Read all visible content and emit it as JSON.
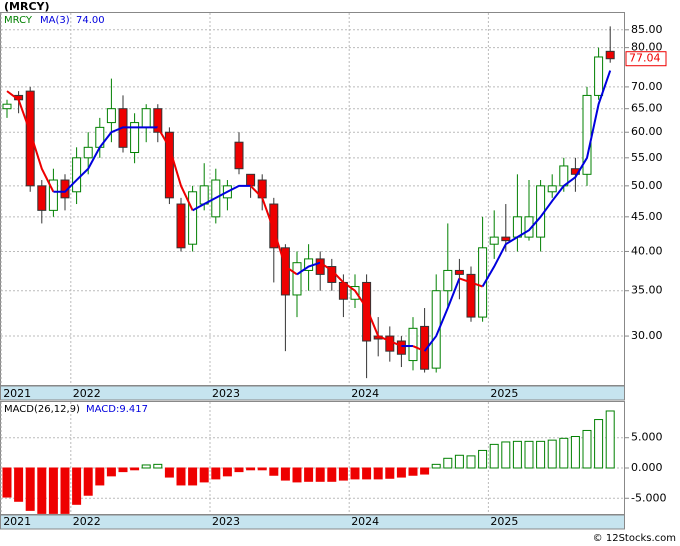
{
  "title": "(MRCY)",
  "footer": "© 12Stocks.com",
  "chart_data": [
    {
      "type": "candlestick",
      "symbol": "MRCY",
      "log_scale": true,
      "grid": true,
      "up_color": "#008000",
      "down_color": "#ee0000",
      "categories": [
        "2021",
        null,
        null,
        null,
        null,
        null,
        "2022",
        null,
        null,
        null,
        null,
        null,
        null,
        null,
        null,
        null,
        null,
        null,
        "2023",
        null,
        null,
        null,
        null,
        null,
        null,
        null,
        null,
        null,
        null,
        null,
        "2024",
        null,
        null,
        null,
        null,
        null,
        null,
        null,
        null,
        null,
        null,
        null,
        "2025",
        null,
        null,
        null,
        null,
        null,
        null,
        null,
        null,
        null,
        null
      ],
      "open": [
        65,
        68,
        69,
        50,
        46,
        51,
        49,
        55,
        57,
        62,
        65,
        56,
        61,
        65,
        60,
        47,
        41,
        47,
        45,
        48,
        58,
        52,
        51,
        47,
        40.5,
        34.5,
        37.5,
        39,
        38,
        36,
        34,
        36,
        30,
        30,
        29.5,
        27.6,
        31,
        26.9,
        35,
        37.5,
        37,
        32,
        41,
        42,
        42,
        42,
        42,
        49,
        50,
        53,
        52,
        68,
        79
      ],
      "high": [
        67,
        69,
        70,
        51,
        53,
        52,
        57,
        60,
        63,
        72,
        68,
        64,
        66,
        66,
        61,
        48,
        50,
        54,
        53,
        51,
        60,
        52,
        52,
        48,
        41,
        40,
        41,
        40,
        39,
        37,
        37,
        37,
        32,
        31,
        30,
        32,
        33,
        37,
        44,
        39,
        38,
        45,
        46,
        47,
        52,
        51,
        51,
        52,
        55,
        55,
        70,
        80,
        86
      ],
      "low": [
        63,
        64,
        49,
        44,
        45,
        46,
        47,
        52,
        55,
        58,
        56,
        54,
        58,
        58,
        47,
        40,
        40,
        46,
        44,
        46,
        52,
        48,
        46,
        36,
        28.5,
        32,
        35,
        35,
        35,
        32,
        33,
        26,
        28,
        27.5,
        27,
        26.7,
        26.5,
        26.5,
        33,
        34,
        31.5,
        31.5,
        39,
        40,
        40,
        41.5,
        40,
        48,
        49,
        49,
        50,
        67,
        76
      ],
      "close": [
        66,
        67,
        50,
        46,
        51,
        48,
        55,
        57,
        61,
        65,
        57,
        62,
        65,
        60,
        48,
        40.5,
        49,
        50,
        51,
        50,
        53,
        50,
        48,
        40.5,
        34.5,
        38.5,
        39,
        37,
        36,
        34,
        35.5,
        29.5,
        29.7,
        28.5,
        28.2,
        30.8,
        26.8,
        35,
        37.5,
        37,
        32,
        40.5,
        42,
        41.5,
        45,
        45,
        50,
        50,
        53.5,
        52,
        68,
        77.5,
        77.04
      ],
      "last_label": "77.04",
      "series": [
        {
          "name": "MA(3)",
          "up_color": "#0000dd",
          "down_color": "#ee0000",
          "last_label": "74.00",
          "values": [
            69,
            67,
            60,
            53,
            49,
            49,
            51,
            53,
            57,
            60,
            61,
            61,
            61,
            61,
            57,
            50,
            46,
            47,
            48,
            49,
            50,
            50,
            48,
            43,
            38,
            37,
            38,
            38.5,
            37.5,
            36,
            35,
            33,
            30,
            29.5,
            29,
            29,
            28.5,
            30,
            33,
            36.5,
            36,
            35.5,
            38,
            41,
            42,
            43,
            45,
            47.5,
            50,
            51.5,
            55,
            66,
            74
          ]
        }
      ],
      "ylim": [
        25.4,
        90
      ],
      "yticks": [
        {
          "value": 30,
          "label": "30.00"
        },
        {
          "value": 35,
          "label": "35.00"
        },
        {
          "value": 40,
          "label": "40.00"
        },
        {
          "value": 45,
          "label": "45.00"
        },
        {
          "value": 50,
          "label": "50.00"
        },
        {
          "value": 55,
          "label": "55.00"
        },
        {
          "value": 60,
          "label": "60.00"
        },
        {
          "value": 65,
          "label": "65.00"
        },
        {
          "value": 70,
          "label": "70.00"
        },
        {
          "value": 80,
          "label": "80.00"
        },
        {
          "value": 85,
          "label": "85.00"
        }
      ]
    },
    {
      "type": "bar",
      "title": "MACD(26,12,9)",
      "value_label": "MACD:9.417",
      "grid": true,
      "up_color": "#008000",
      "down_color": "#ee0000",
      "values": [
        -4.8,
        -5.5,
        -7,
        -7.5,
        -7.5,
        -7.5,
        -6,
        -4.5,
        -2.8,
        -1.3,
        -0.6,
        -0.3,
        0.5,
        0.6,
        -1.5,
        -2.8,
        -2.8,
        -2.3,
        -1.8,
        -1.3,
        -0.6,
        -0.3,
        -0.3,
        -1.2,
        -2,
        -2.3,
        -2.2,
        -2.2,
        -2.2,
        -2,
        -1.8,
        -1.8,
        -1.8,
        -1.7,
        -1.5,
        -1.2,
        -1,
        0.6,
        1.6,
        2.1,
        2,
        2.9,
        3.9,
        4.3,
        4.4,
        4.4,
        4.4,
        4.6,
        4.9,
        5.2,
        6.2,
        8,
        9.417
      ],
      "ylim": [
        -7.6,
        10.9
      ],
      "yticks": [
        {
          "value": 5,
          "label": "5.000"
        },
        {
          "value": 0,
          "label": "0.000"
        },
        {
          "value": -5,
          "label": "-5.000"
        }
      ]
    }
  ]
}
